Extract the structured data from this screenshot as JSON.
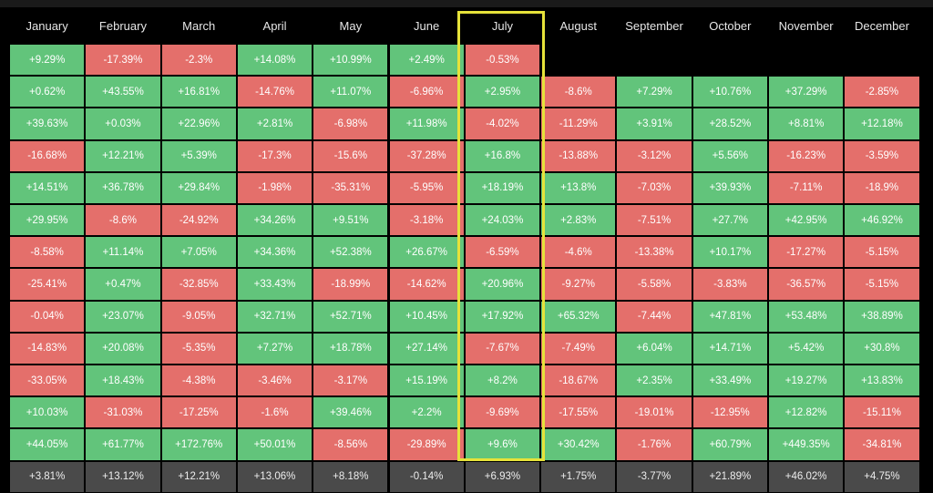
{
  "header": {
    "months": [
      "January",
      "February",
      "March",
      "April",
      "May",
      "June",
      "July",
      "August",
      "September",
      "October",
      "November",
      "December"
    ]
  },
  "table": {
    "rows": [
      [
        "+9.29%",
        "-17.39%",
        "-2.3%",
        "+14.08%",
        "+10.99%",
        "+2.49%",
        "-0.53%"
      ],
      [
        "+0.62%",
        "+43.55%",
        "+16.81%",
        "-14.76%",
        "+11.07%",
        "-6.96%",
        "+2.95%",
        "-8.6%",
        "+7.29%",
        "+10.76%",
        "+37.29%",
        "-2.85%"
      ],
      [
        "+39.63%",
        "+0.03%",
        "+22.96%",
        "+2.81%",
        "-6.98%",
        "+11.98%",
        "-4.02%",
        "-11.29%",
        "+3.91%",
        "+28.52%",
        "+8.81%",
        "+12.18%"
      ],
      [
        "-16.68%",
        "+12.21%",
        "+5.39%",
        "-17.3%",
        "-15.6%",
        "-37.28%",
        "+16.8%",
        "-13.88%",
        "-3.12%",
        "+5.56%",
        "-16.23%",
        "-3.59%"
      ],
      [
        "+14.51%",
        "+36.78%",
        "+29.84%",
        "-1.98%",
        "-35.31%",
        "-5.95%",
        "+18.19%",
        "+13.8%",
        "-7.03%",
        "+39.93%",
        "-7.11%",
        "-18.9%"
      ],
      [
        "+29.95%",
        "-8.6%",
        "-24.92%",
        "+34.26%",
        "+9.51%",
        "-3.18%",
        "+24.03%",
        "+2.83%",
        "-7.51%",
        "+27.7%",
        "+42.95%",
        "+46.92%"
      ],
      [
        "-8.58%",
        "+11.14%",
        "+7.05%",
        "+34.36%",
        "+52.38%",
        "+26.67%",
        "-6.59%",
        "-4.6%",
        "-13.38%",
        "+10.17%",
        "-17.27%",
        "-5.15%"
      ],
      [
        "-25.41%",
        "+0.47%",
        "-32.85%",
        "+33.43%",
        "-18.99%",
        "-14.62%",
        "+20.96%",
        "-9.27%",
        "-5.58%",
        "-3.83%",
        "-36.57%",
        "-5.15%"
      ],
      [
        "-0.04%",
        "+23.07%",
        "-9.05%",
        "+32.71%",
        "+52.71%",
        "+10.45%",
        "+17.92%",
        "+65.32%",
        "-7.44%",
        "+47.81%",
        "+53.48%",
        "+38.89%"
      ],
      [
        "-14.83%",
        "+20.08%",
        "-5.35%",
        "+7.27%",
        "+18.78%",
        "+27.14%",
        "-7.67%",
        "-7.49%",
        "+6.04%",
        "+14.71%",
        "+5.42%",
        "+30.8%"
      ],
      [
        "-33.05%",
        "+18.43%",
        "-4.38%",
        "-3.46%",
        "-3.17%",
        "+15.19%",
        "+8.2%",
        "-18.67%",
        "+2.35%",
        "+33.49%",
        "+19.27%",
        "+13.83%"
      ],
      [
        "+10.03%",
        "-31.03%",
        "-17.25%",
        "-1.6%",
        "+39.46%",
        "+2.2%",
        "-9.69%",
        "-17.55%",
        "-19.01%",
        "-12.95%",
        "+12.82%",
        "-15.11%"
      ],
      [
        "+44.05%",
        "+61.77%",
        "+172.76%",
        "+50.01%",
        "-8.56%",
        "-29.89%",
        "+9.6%",
        "+30.42%",
        "-1.76%",
        "+60.79%",
        "+449.35%",
        "-34.81%"
      ]
    ],
    "average_row": [
      "+3.81%",
      "+13.12%",
      "+12.21%",
      "+13.06%",
      "+8.18%",
      "-0.14%",
      "+6.93%",
      "+1.75%",
      "-3.77%",
      "+21.89%",
      "+46.02%",
      "+4.75%"
    ]
  }
}
